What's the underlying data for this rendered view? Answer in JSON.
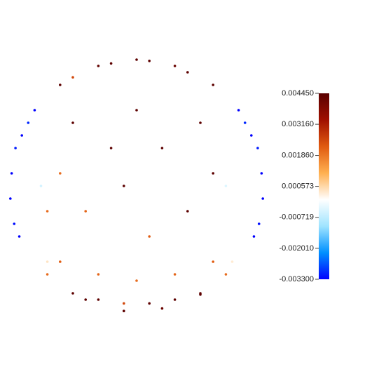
{
  "chart_data": {
    "type": "scatter",
    "x": [
      -0.98,
      -0.95,
      -0.9,
      -0.85,
      -0.99,
      -0.96,
      -0.92,
      0.98,
      0.95,
      0.9,
      0.85,
      0.99,
      0.96,
      0.92,
      -0.6,
      -0.3,
      0,
      0.3,
      0.6,
      -0.5,
      -0.2,
      0.1,
      0.4,
      -0.4,
      -0.1,
      0.2,
      0.5,
      -0.7,
      -0.5,
      -0.3,
      -0.1,
      0.1,
      0.3,
      0.5,
      0.7,
      -0.6,
      -0.3,
      0,
      0.3,
      0.6,
      -0.8,
      -0.7,
      -0.75,
      0.8,
      0.75,
      -0.5,
      0.5,
      -0.2,
      0.2,
      0,
      -0.6,
      0.6,
      -0.4,
      0.4,
      0.1,
      -0.1,
      0.7,
      -0.7
    ],
    "y": [
      0.1,
      0.3,
      0.4,
      0.5,
      -0.1,
      -0.3,
      -0.4,
      0.1,
      0.3,
      0.4,
      0.5,
      -0.1,
      -0.3,
      -0.4,
      0.8,
      0.95,
      1.0,
      0.95,
      0.8,
      0.86,
      0.97,
      0.99,
      0.9,
      -0.9,
      -0.99,
      -0.97,
      -0.86,
      -0.7,
      -0.85,
      -0.9,
      -0.93,
      -0.93,
      -0.9,
      -0.85,
      -0.7,
      -0.6,
      -0.7,
      -0.75,
      -0.7,
      -0.6,
      0.6,
      -0.6,
      0,
      0.6,
      -0.6,
      0.5,
      0.5,
      0.3,
      0.3,
      0.6,
      0.1,
      0.1,
      -0.2,
      -0.2,
      -0.4,
      0,
      0,
      -0.2
    ],
    "values": [
      -0.0033,
      -0.0031,
      -0.0033,
      -0.003,
      -0.0033,
      -0.0032,
      -0.0033,
      -0.0033,
      -0.0031,
      -0.0033,
      -0.003,
      -0.0033,
      -0.0032,
      -0.0033,
      0.0044,
      0.0043,
      0.0044,
      0.0042,
      0.0044,
      0.0025,
      0.0044,
      0.0044,
      0.0044,
      0.0044,
      0.0044,
      0.0042,
      0.0044,
      0.002,
      0.0044,
      0.0044,
      0.0025,
      0.0044,
      0.0044,
      0.0044,
      0.002,
      0.0022,
      0.0021,
      0.002,
      0.0021,
      0.0022,
      -0.0033,
      0.0004,
      -0.0005,
      -0.0033,
      0.0003,
      0.0044,
      0.0044,
      0.0044,
      0.0044,
      0.0044,
      0.002,
      0.0044,
      0.0021,
      0.0044,
      0.0022,
      0.0044,
      -0.0004,
      0.002
    ],
    "xlim": [
      -1,
      1
    ],
    "ylim": [
      -1,
      1
    ],
    "colorbar": {
      "lim": [
        -0.0033,
        0.00445
      ],
      "ticks": [
        {
          "value": 0.00445,
          "label": "0.004450"
        },
        {
          "value": 0.00316,
          "label": "0.003160"
        },
        {
          "value": 0.00186,
          "label": "0.001860"
        },
        {
          "value": 0.000573,
          "label": "0.000573"
        },
        {
          "value": -0.000719,
          "label": "-0.000719"
        },
        {
          "value": -0.00201,
          "label": "-0.002010"
        },
        {
          "value": -0.0033,
          "label": "-0.003300"
        }
      ],
      "colormap": [
        "#0000ff",
        "#0090ff",
        "#a0e4ff",
        "#ffffff",
        "#ffb050",
        "#e05a10",
        "#a01000",
        "#5a0000"
      ]
    }
  }
}
